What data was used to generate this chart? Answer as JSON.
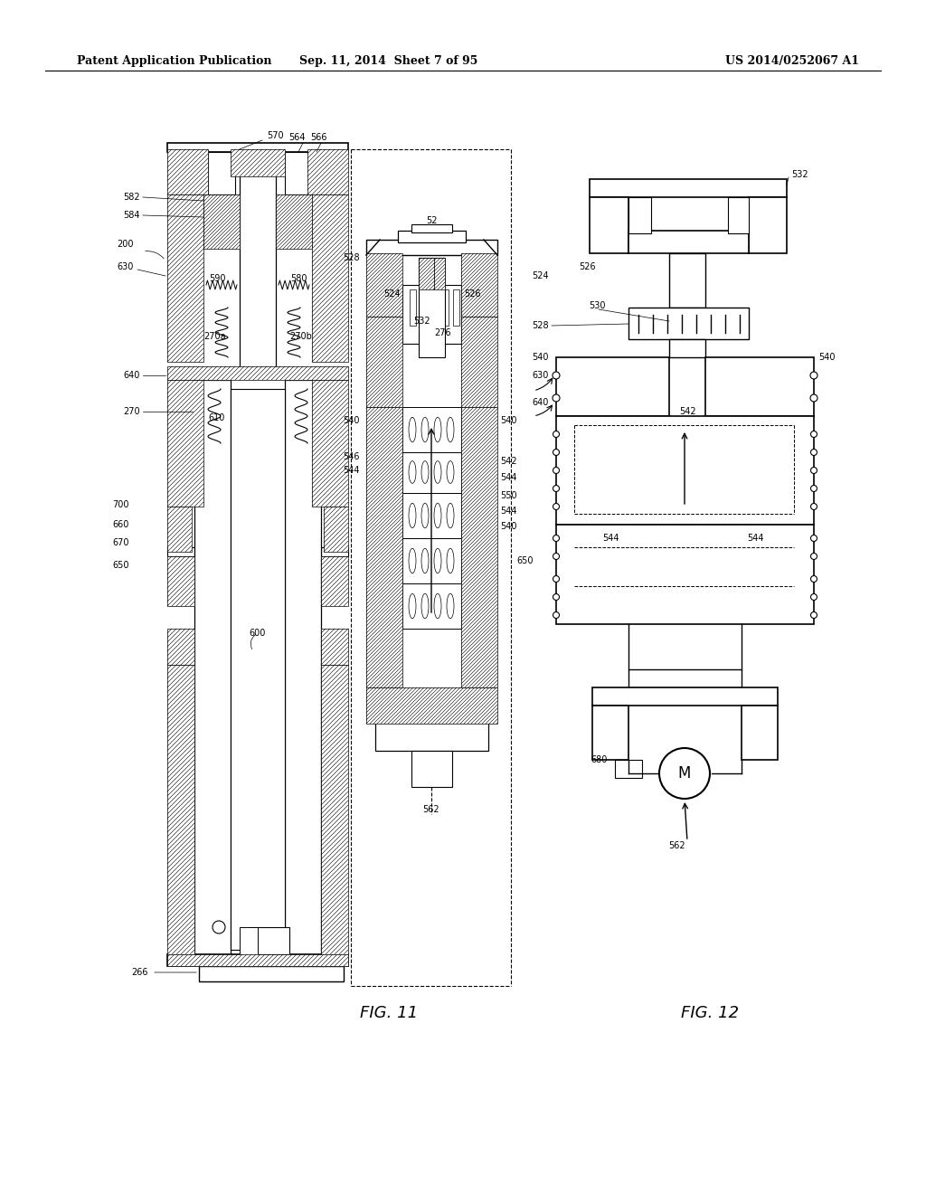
{
  "background_color": "#ffffff",
  "header_left": "Patent Application Publication",
  "header_center": "Sep. 11, 2014  Sheet 7 of 95",
  "header_right": "US 2014/0252067 A1",
  "fig11_label": "FIG. 11",
  "fig12_label": "FIG. 12",
  "fig_width": 10.24,
  "fig_height": 13.2,
  "dpi": 100
}
